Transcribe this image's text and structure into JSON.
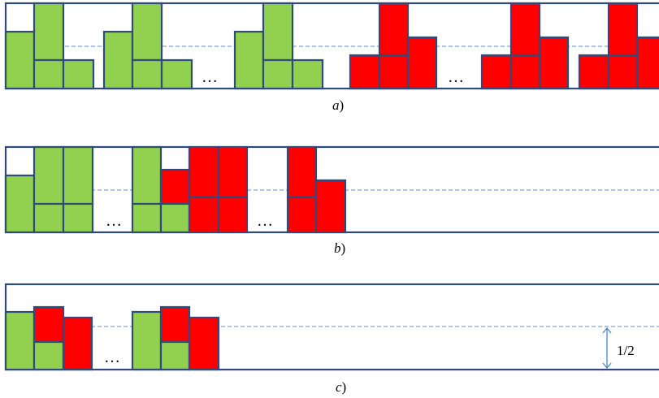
{
  "colors": {
    "green": "#92d050",
    "red": "#ff0000",
    "frame": "#2e4b7a",
    "half_line": "#6a8fc4",
    "arrow": "#4a86c8"
  },
  "ellipsis": "…",
  "panels": [
    {
      "label": "a",
      "suffix": ")"
    },
    {
      "label": "b",
      "suffix": ")"
    },
    {
      "label": "c",
      "suffix": ")"
    }
  ],
  "dimension_label": "1/2"
}
